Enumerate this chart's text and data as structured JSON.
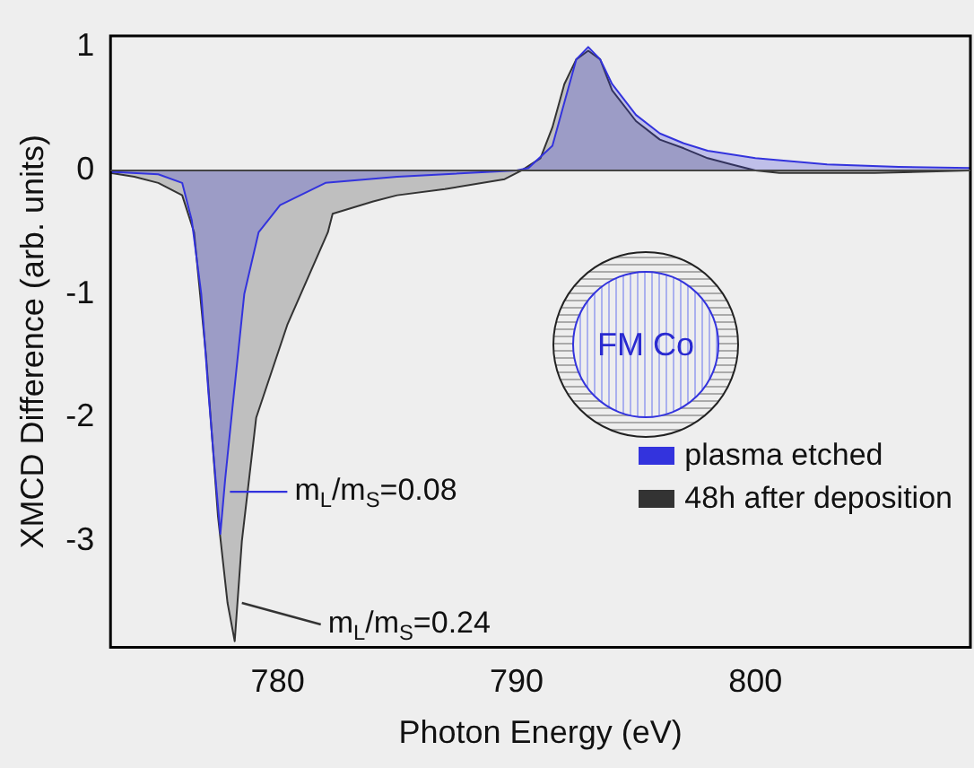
{
  "chart_data": {
    "type": "area",
    "xlabel": "Photon Energy (eV)",
    "ylabel": "XMCD Difference (arb. units)",
    "xlim": [
      773,
      809
    ],
    "xticks": [
      780,
      790,
      800
    ],
    "ylim": [
      -3.86,
      1.09
    ],
    "yticks": [
      -3,
      -2,
      -1,
      0,
      1
    ],
    "legend": "bottom right",
    "series": [
      {
        "name": "plasma etched",
        "color": "#3333dd",
        "x": [
          773,
          775,
          776,
          776.4,
          776.8,
          777.1,
          777.4,
          777.6,
          777.8,
          778.1,
          778.6,
          779.2,
          780.1,
          782,
          785,
          790,
          790.5,
          791.5,
          792,
          792.5,
          793,
          793.5,
          794,
          795,
          796,
          797,
          798,
          800,
          803,
          806,
          809
        ],
        "values": [
          -0.01,
          -0.03,
          -0.1,
          -0.4,
          -1.0,
          -1.8,
          -2.5,
          -2.94,
          -2.5,
          -1.93,
          -1.0,
          -0.5,
          -0.28,
          -0.1,
          -0.05,
          0,
          0.02,
          0.2,
          0.55,
          0.9,
          1.0,
          0.9,
          0.7,
          0.45,
          0.3,
          0.22,
          0.16,
          0.1,
          0.05,
          0.03,
          0.02
        ]
      },
      {
        "name": "48h after deposition",
        "color": "#333333",
        "x": [
          773,
          774,
          775,
          776,
          776.5,
          777,
          777.5,
          777.9,
          778.2,
          778.5,
          779.1,
          780.4,
          782.1,
          782.3,
          784,
          785,
          787,
          789.5,
          790.2,
          791,
          791.5,
          792,
          792.5,
          793,
          793.5,
          794,
          795,
          796,
          797,
          798,
          799,
          800,
          801,
          805,
          809
        ],
        "values": [
          -0.02,
          -0.05,
          -0.1,
          -0.2,
          -0.5,
          -1.5,
          -2.8,
          -3.5,
          -3.81,
          -3.0,
          -2.0,
          -1.25,
          -0.5,
          -0.35,
          -0.25,
          -0.2,
          -0.15,
          -0.07,
          0,
          0.1,
          0.35,
          0.7,
          0.9,
          0.97,
          0.9,
          0.65,
          0.4,
          0.25,
          0.18,
          0.1,
          0.05,
          0,
          -0.02,
          -0.02,
          0
        ]
      }
    ],
    "annotations": [
      {
        "text": "m$_{L}$/m$_{S}$=0.08",
        "x": 778,
        "y": -2.6
      },
      {
        "text": "m$_{L}$/m$_{S}$=0.24",
        "x": 778.5,
        "y": -3.5
      },
      "FM Co"
    ]
  }
}
